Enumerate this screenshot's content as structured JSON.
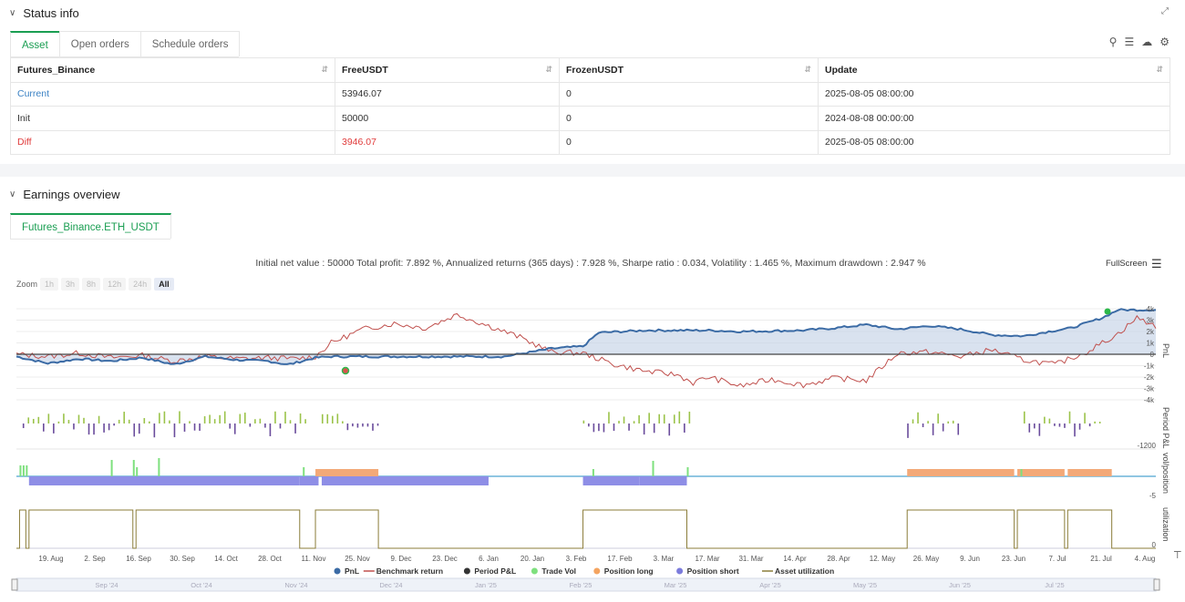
{
  "status": {
    "title": "Status info",
    "tabs": [
      "Asset",
      "Open orders",
      "Schedule orders"
    ],
    "table": {
      "headers": [
        "Futures_Binance",
        "FreeUSDT",
        "FrozenUSDT",
        "Update"
      ],
      "rows": [
        {
          "label": "Current",
          "free": "53946.07",
          "frozen": "0",
          "update": "2025-08-05 08:00:00",
          "color": "#3b82c4"
        },
        {
          "label": "Init",
          "free": "50000",
          "frozen": "0",
          "update": "2024-08-08 00:00:00",
          "color": "#333333"
        },
        {
          "label": "Diff",
          "free": "3946.07",
          "frozen": "0",
          "update": "2025-08-05 08:00:00",
          "color": "#e03a3a"
        }
      ]
    },
    "tool_icons": [
      "search-icon",
      "list-icon",
      "cloud-icon",
      "gear-icon"
    ]
  },
  "earnings": {
    "title": "Earnings overview",
    "tab": "Futures_Binance.ETH_USDT",
    "summary": "Initial net value : 50000 Total profit: 7.892 %, Annualized returns (365 days) : 7.928 %, Sharpe ratio : 0.034, Volatility : 1.465 %, Maximum drawdown : 2.947 %",
    "fullscreen_label": "FullScreen",
    "zoom": {
      "label": "Zoom",
      "options": [
        "1h",
        "3h",
        "8h",
        "12h",
        "24h",
        "All"
      ],
      "active": "All"
    }
  },
  "chart_data": {
    "type": "line",
    "pnl_axis": {
      "label": "PnL",
      "ticks": [
        "4k",
        "3k",
        "2k",
        "1k",
        "0",
        "-1k",
        "-2k",
        "-3k",
        "-4k"
      ]
    },
    "period_axis": {
      "label": "Period P&L",
      "ticks": [
        "-1200"
      ]
    },
    "pos_axis": {
      "label": "vol/position",
      "ticks": [
        "-5"
      ]
    },
    "util_axis": {
      "label": "utilization",
      "ticks": [
        "0"
      ]
    },
    "x_ticks": [
      "19. Aug",
      "2. Sep",
      "16. Sep",
      "30. Sep",
      "14. Oct",
      "28. Oct",
      "11. Nov",
      "25. Nov",
      "9. Dec",
      "23. Dec",
      "6. Jan",
      "20. Jan",
      "3. Feb",
      "17. Feb",
      "3. Mar",
      "17. Mar",
      "31. Mar",
      "14. Apr",
      "28. Apr",
      "12. May",
      "26. May",
      "9. Jun",
      "23. Jun",
      "7. Jul",
      "21. Jul",
      "4. Aug"
    ],
    "navigator_ticks": [
      "Sep '24",
      "Oct '24",
      "Nov '24",
      "Dec '24",
      "Jan '25",
      "Feb '25",
      "Mar '25",
      "Apr '25",
      "May '25",
      "Jun '25",
      "Jul '25"
    ],
    "legend": [
      {
        "name": "PnL",
        "color": "#3b6ba5",
        "shape": "dot"
      },
      {
        "name": "Benchmark return",
        "color": "#c0504d",
        "shape": "line"
      },
      {
        "name": "Period P&L",
        "color": "#333333",
        "shape": "dot"
      },
      {
        "name": "Trade Vol",
        "color": "#7ee07e",
        "shape": "dot"
      },
      {
        "name": "Position long",
        "color": "#f4a460",
        "shape": "dot"
      },
      {
        "name": "Position short",
        "color": "#7b7bdc",
        "shape": "dot"
      },
      {
        "name": "Asset utilization",
        "color": "#8b7d3a",
        "shape": "line"
      }
    ],
    "pnl_series": {
      "x_days": [
        0,
        10,
        20,
        30,
        40,
        50,
        60,
        70,
        80,
        86,
        88,
        95,
        100,
        140,
        155,
        170,
        175,
        180,
        185,
        200,
        210,
        220,
        230,
        250,
        260,
        270,
        280,
        290,
        300,
        310,
        320,
        328,
        335,
        345,
        350,
        362
      ],
      "y": [
        -200,
        -800,
        -400,
        -600,
        -300,
        -900,
        -200,
        -500,
        -600,
        -900,
        -800,
        -300,
        -200,
        -200,
        -200,
        500,
        600,
        700,
        1900,
        2100,
        2100,
        2100,
        2000,
        2100,
        2300,
        2600,
        2200,
        2500,
        2200,
        1700,
        1600,
        2000,
        2300,
        3200,
        3900,
        3900
      ]
    },
    "benchmark_series": {
      "x_days": [
        0,
        10,
        20,
        30,
        40,
        50,
        60,
        70,
        80,
        88,
        95,
        100,
        110,
        120,
        130,
        140,
        150,
        160,
        170,
        180,
        190,
        200,
        210,
        215,
        220,
        230,
        240,
        250,
        260,
        270,
        280,
        290,
        300,
        310,
        320,
        330,
        340,
        350,
        356,
        362
      ],
      "y": [
        0,
        -200,
        100,
        -300,
        -100,
        -600,
        -200,
        -400,
        -300,
        -400,
        -200,
        1000,
        2200,
        2700,
        2300,
        3500,
        2500,
        1500,
        200,
        100,
        -900,
        -1500,
        -1800,
        -2500,
        -2000,
        -2800,
        -2200,
        -2700,
        -2100,
        -2300,
        100,
        200,
        -200,
        400,
        -500,
        -900,
        200,
        1800,
        3200,
        2500
      ]
    }
  }
}
